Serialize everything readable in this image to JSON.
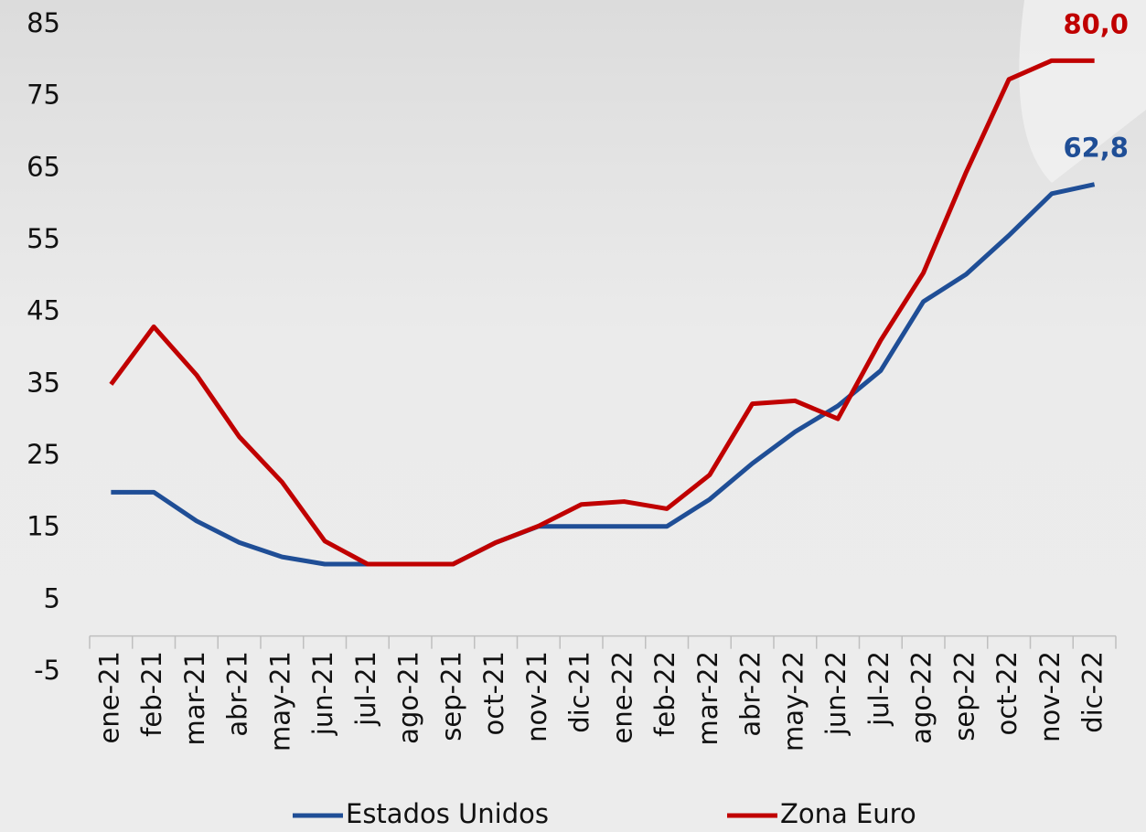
{
  "chart_data": {
    "type": "line",
    "categories": [
      "ene-21",
      "feb-21",
      "mar-21",
      "abr-21",
      "may-21",
      "jun-21",
      "jul-21",
      "ago-21",
      "sep-21",
      "oct-21",
      "nov-21",
      "dic-21",
      "ene-22",
      "feb-22",
      "mar-22",
      "abr-22",
      "may-22",
      "jun-22",
      "jul-22",
      "ago-22",
      "sep-22",
      "oct-22",
      "nov-22",
      "dic-22"
    ],
    "series": [
      {
        "name": "Estados Unidos",
        "color": "#1f4e96",
        "values": [
          20,
          20,
          16,
          13,
          11,
          10,
          10,
          10,
          10,
          13,
          15.25,
          15.25,
          15.25,
          15.25,
          19,
          24,
          28.4,
          32,
          36.9,
          46.5,
          50.3,
          55.7,
          61.5,
          62.8
        ],
        "value_labels": [
          null,
          null,
          null,
          null,
          null,
          null,
          null,
          null,
          null,
          null,
          null,
          null,
          null,
          null,
          null,
          null,
          null,
          null,
          null,
          null,
          null,
          null,
          null,
          "62,8"
        ]
      },
      {
        "name": "Zona Euro",
        "color": "#c00000",
        "values": [
          35,
          43,
          36.3,
          27.7,
          21.4,
          13.2,
          10,
          10,
          10,
          13,
          15.3,
          18.3,
          18.7,
          17.7,
          22.4,
          32.3,
          32.7,
          30.2,
          41.1,
          50.5,
          64.5,
          77.4,
          80,
          80
        ],
        "value_labels": [
          null,
          null,
          null,
          null,
          null,
          null,
          null,
          null,
          null,
          null,
          null,
          null,
          null,
          null,
          null,
          null,
          null,
          null,
          null,
          null,
          null,
          null,
          null,
          "80,0"
        ]
      }
    ],
    "ylim": [
      -5,
      85
    ],
    "yticks": [
      -5,
      5,
      15,
      25,
      35,
      45,
      55,
      65,
      75,
      85
    ],
    "grid": false,
    "legend": "bottom"
  }
}
